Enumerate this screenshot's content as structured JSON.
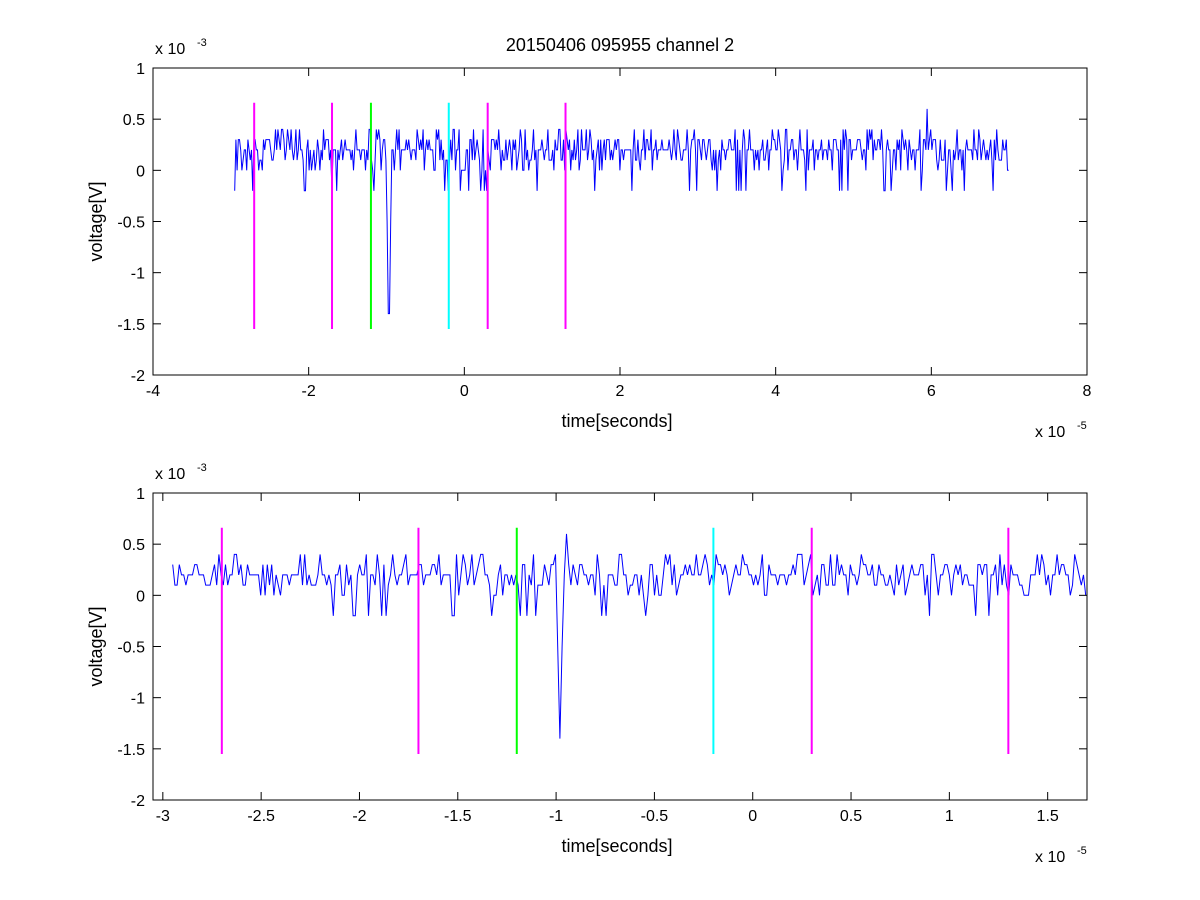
{
  "chart_data": [
    {
      "type": "line",
      "title": "20150406 095955 channel 2",
      "xlabel": "time[seconds]",
      "ylabel": "voltage[V]",
      "x_exponent": "x 10",
      "x_exponent_power": "-5",
      "y_exponent": "x 10",
      "y_exponent_power": "-3",
      "xlim": [
        -4,
        8
      ],
      "ylim": [
        -2,
        1
      ],
      "x_ticks": [
        -4,
        -2,
        0,
        2,
        4,
        6,
        8
      ],
      "x_tick_labels": [
        "-4",
        "-2",
        "0",
        "2",
        "4",
        "6",
        "8"
      ],
      "y_ticks": [
        -2,
        -1.5,
        -1,
        -0.5,
        0,
        0.5,
        1
      ],
      "y_tick_labels": [
        "-2",
        "-1.5",
        "-1",
        "-0.5",
        "0",
        "0.5",
        "1"
      ],
      "grid": false,
      "signal": {
        "color": "#0000ff",
        "x_range": [
          -2.95,
          7.0
        ],
        "baseline": 0.2,
        "noise_levels": [
          0.0,
          0.1,
          0.2,
          0.3,
          0.4
        ],
        "negative_spike": {
          "x": -0.97,
          "y": -1.4
        },
        "max_peak": {
          "x": 5.95,
          "y": 0.6
        }
      },
      "markers": [
        {
          "x": -2.7,
          "y_top": 0.66,
          "y_bottom": -1.55,
          "color": "#ff00ff"
        },
        {
          "x": -1.7,
          "y_top": 0.66,
          "y_bottom": -1.55,
          "color": "#ff00ff"
        },
        {
          "x": -1.2,
          "y_top": 0.66,
          "y_bottom": -1.55,
          "color": "#00ff00"
        },
        {
          "x": -0.2,
          "y_top": 0.66,
          "y_bottom": -1.55,
          "color": "#00ffff"
        },
        {
          "x": 0.3,
          "y_top": 0.66,
          "y_bottom": -1.55,
          "color": "#ff00ff"
        },
        {
          "x": 1.3,
          "y_top": 0.66,
          "y_bottom": -1.55,
          "color": "#ff00ff"
        }
      ]
    },
    {
      "type": "line",
      "title": "",
      "xlabel": "time[seconds]",
      "ylabel": "voltage[V]",
      "x_exponent": "x 10",
      "x_exponent_power": "-5",
      "y_exponent": "x 10",
      "y_exponent_power": "-3",
      "xlim": [
        -3.05,
        1.7
      ],
      "ylim": [
        -2,
        1
      ],
      "x_ticks": [
        -3,
        -2.5,
        -2,
        -1.5,
        -1,
        -0.5,
        0,
        0.5,
        1,
        1.5
      ],
      "x_tick_labels": [
        "-3",
        "-2.5",
        "-2",
        "-1.5",
        "-1",
        "-0.5",
        "0",
        "0.5",
        "1",
        "1.5"
      ],
      "y_ticks": [
        -2,
        -1.5,
        -1,
        -0.5,
        0,
        0.5,
        1
      ],
      "y_tick_labels": [
        "-2",
        "-1.5",
        "-1",
        "-0.5",
        "0",
        "0.5",
        "1"
      ],
      "grid": false,
      "signal": {
        "color": "#0000ff",
        "x_range": [
          -2.95,
          1.7
        ],
        "baseline": 0.2,
        "noise_levels": [
          0.0,
          0.1,
          0.2,
          0.3,
          0.4
        ],
        "negative_spike": {
          "x": -0.98,
          "y": -1.4
        },
        "max_peak": {
          "x": -0.95,
          "y": 0.6
        }
      },
      "markers": [
        {
          "x": -2.7,
          "y_top": 0.66,
          "y_bottom": -1.55,
          "color": "#ff00ff"
        },
        {
          "x": -1.7,
          "y_top": 0.66,
          "y_bottom": -1.55,
          "color": "#ff00ff"
        },
        {
          "x": -1.2,
          "y_top": 0.66,
          "y_bottom": -1.55,
          "color": "#00ff00"
        },
        {
          "x": -0.2,
          "y_top": 0.66,
          "y_bottom": -1.55,
          "color": "#00ffff"
        },
        {
          "x": 0.3,
          "y_top": 0.66,
          "y_bottom": -1.55,
          "color": "#ff00ff"
        },
        {
          "x": 1.3,
          "y_top": 0.66,
          "y_bottom": -1.55,
          "color": "#ff00ff"
        }
      ]
    }
  ]
}
